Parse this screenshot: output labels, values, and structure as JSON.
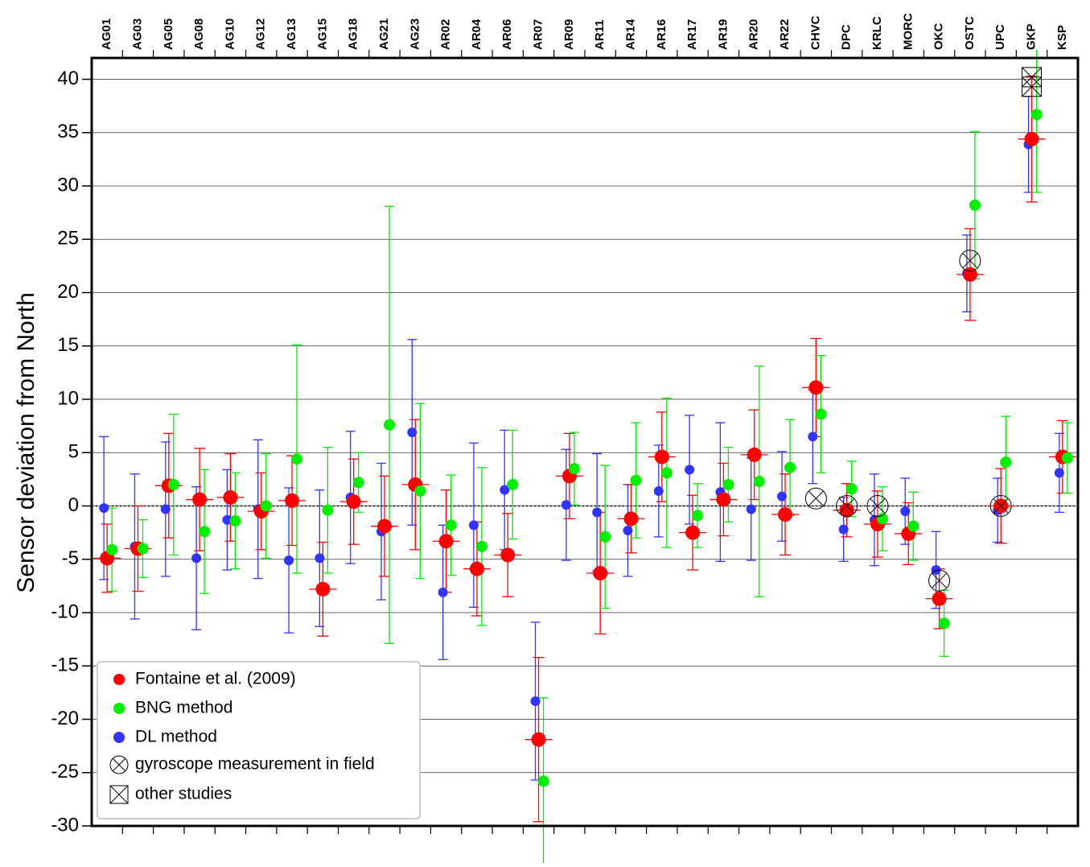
{
  "chart_data": {
    "type": "errorbar",
    "y_label": "Sensor deviation from North",
    "categories": [
      "AG01",
      "AG03",
      "AG05",
      "AG08",
      "AG10",
      "AG12",
      "AG13",
      "AG15",
      "AG18",
      "AG21",
      "AG23",
      "AR02",
      "AR04",
      "AR06",
      "AR07",
      "AR09",
      "AR11",
      "AR14",
      "AR16",
      "AR17",
      "AR19",
      "AR20",
      "AR22",
      "CHVC",
      "DPC",
      "KRLC",
      "MORC",
      "OKC",
      "OSTC",
      "UPC",
      "GKP",
      "KSP"
    ],
    "ylim": [
      -30,
      42
    ],
    "yticks": [
      -30,
      -25,
      -20,
      -15,
      -10,
      -5,
      0,
      5,
      10,
      15,
      20,
      25,
      30,
      35,
      40
    ],
    "grid": true,
    "zero_line": true,
    "legend": "lower left",
    "series": [
      {
        "name": "Fontaine et al. (2009)",
        "color": "#ff0000",
        "values": [
          -4.9,
          -4.0,
          1.9,
          0.6,
          0.8,
          -0.5,
          0.5,
          -7.8,
          0.4,
          -1.9,
          2.0,
          -3.3,
          -5.9,
          -4.6,
          -21.9,
          2.8,
          -6.3,
          -1.2,
          4.6,
          -2.5,
          0.6,
          4.8,
          -0.8,
          11.1,
          -0.4,
          -1.7,
          -2.6,
          -8.7,
          21.7,
          0.0,
          34.4,
          4.6
        ],
        "errors": [
          3.2,
          4.0,
          4.9,
          4.8,
          4.1,
          3.6,
          4.2,
          4.4,
          4.0,
          4.7,
          6.1,
          4.8,
          4.4,
          3.9,
          7.7,
          4.0,
          5.7,
          3.2,
          4.2,
          3.5,
          3.4,
          4.2,
          3.8,
          4.6,
          2.5,
          3.1,
          2.9,
          2.8,
          4.3,
          3.5,
          5.9,
          3.4
        ]
      },
      {
        "name": "BNG method",
        "color": "#00ee00",
        "values": [
          -4.1,
          -4.0,
          2.0,
          -2.4,
          -1.4,
          0.0,
          4.4,
          -0.4,
          2.2,
          7.6,
          1.4,
          -1.8,
          -3.8,
          2.0,
          -25.8,
          3.5,
          -2.9,
          2.4,
          3.1,
          -0.9,
          2.0,
          2.3,
          3.6,
          8.6,
          1.6,
          -1.2,
          -1.9,
          -11.0,
          28.2,
          4.1,
          36.7,
          4.5
        ],
        "errors": [
          3.9,
          2.7,
          6.6,
          5.8,
          4.5,
          4.9,
          10.7,
          5.9,
          2.8,
          20.5,
          8.2,
          4.7,
          7.4,
          5.1,
          7.8,
          3.4,
          6.7,
          5.4,
          7.0,
          3.0,
          3.5,
          10.8,
          4.5,
          5.5,
          2.6,
          3.0,
          3.2,
          3.1,
          6.9,
          4.3,
          7.3,
          3.3
        ]
      },
      {
        "name": "DL method",
        "color": "#3333ff",
        "values": [
          -0.2,
          -3.8,
          -0.3,
          -4.9,
          -1.3,
          -0.3,
          -5.1,
          -4.9,
          0.8,
          -2.4,
          6.9,
          -8.1,
          -1.8,
          1.5,
          -18.3,
          0.1,
          -0.6,
          -2.3,
          1.4,
          3.4,
          1.3,
          -0.3,
          0.9,
          6.5,
          -2.2,
          -1.3,
          -0.5,
          -6.0,
          21.8,
          -0.4,
          33.9,
          3.1
        ],
        "errors": [
          6.7,
          6.8,
          6.3,
          6.7,
          4.7,
          6.5,
          6.8,
          6.4,
          6.2,
          6.4,
          8.7,
          6.3,
          7.7,
          5.6,
          7.4,
          5.2,
          5.5,
          4.3,
          4.3,
          5.1,
          6.5,
          4.8,
          4.2,
          4.4,
          3.0,
          4.3,
          3.1,
          3.6,
          3.6,
          3.0,
          4.5,
          3.7
        ]
      }
    ],
    "gyroscope": {
      "name": "gyroscope measurement in field",
      "points": [
        {
          "category": "CHVC",
          "value": 0.7
        },
        {
          "category": "DPC",
          "value": 0.0
        },
        {
          "category": "KRLC",
          "value": 0.0
        },
        {
          "category": "OKC",
          "value": -7.0
        },
        {
          "category": "OSTC",
          "value": 23.0
        },
        {
          "category": "UPC",
          "value": 0.0
        }
      ]
    },
    "other_studies": {
      "name": "other studies",
      "points": [
        {
          "category": "GKP",
          "value": 40.2
        },
        {
          "category": "GKP",
          "value": 39.3
        }
      ]
    }
  }
}
